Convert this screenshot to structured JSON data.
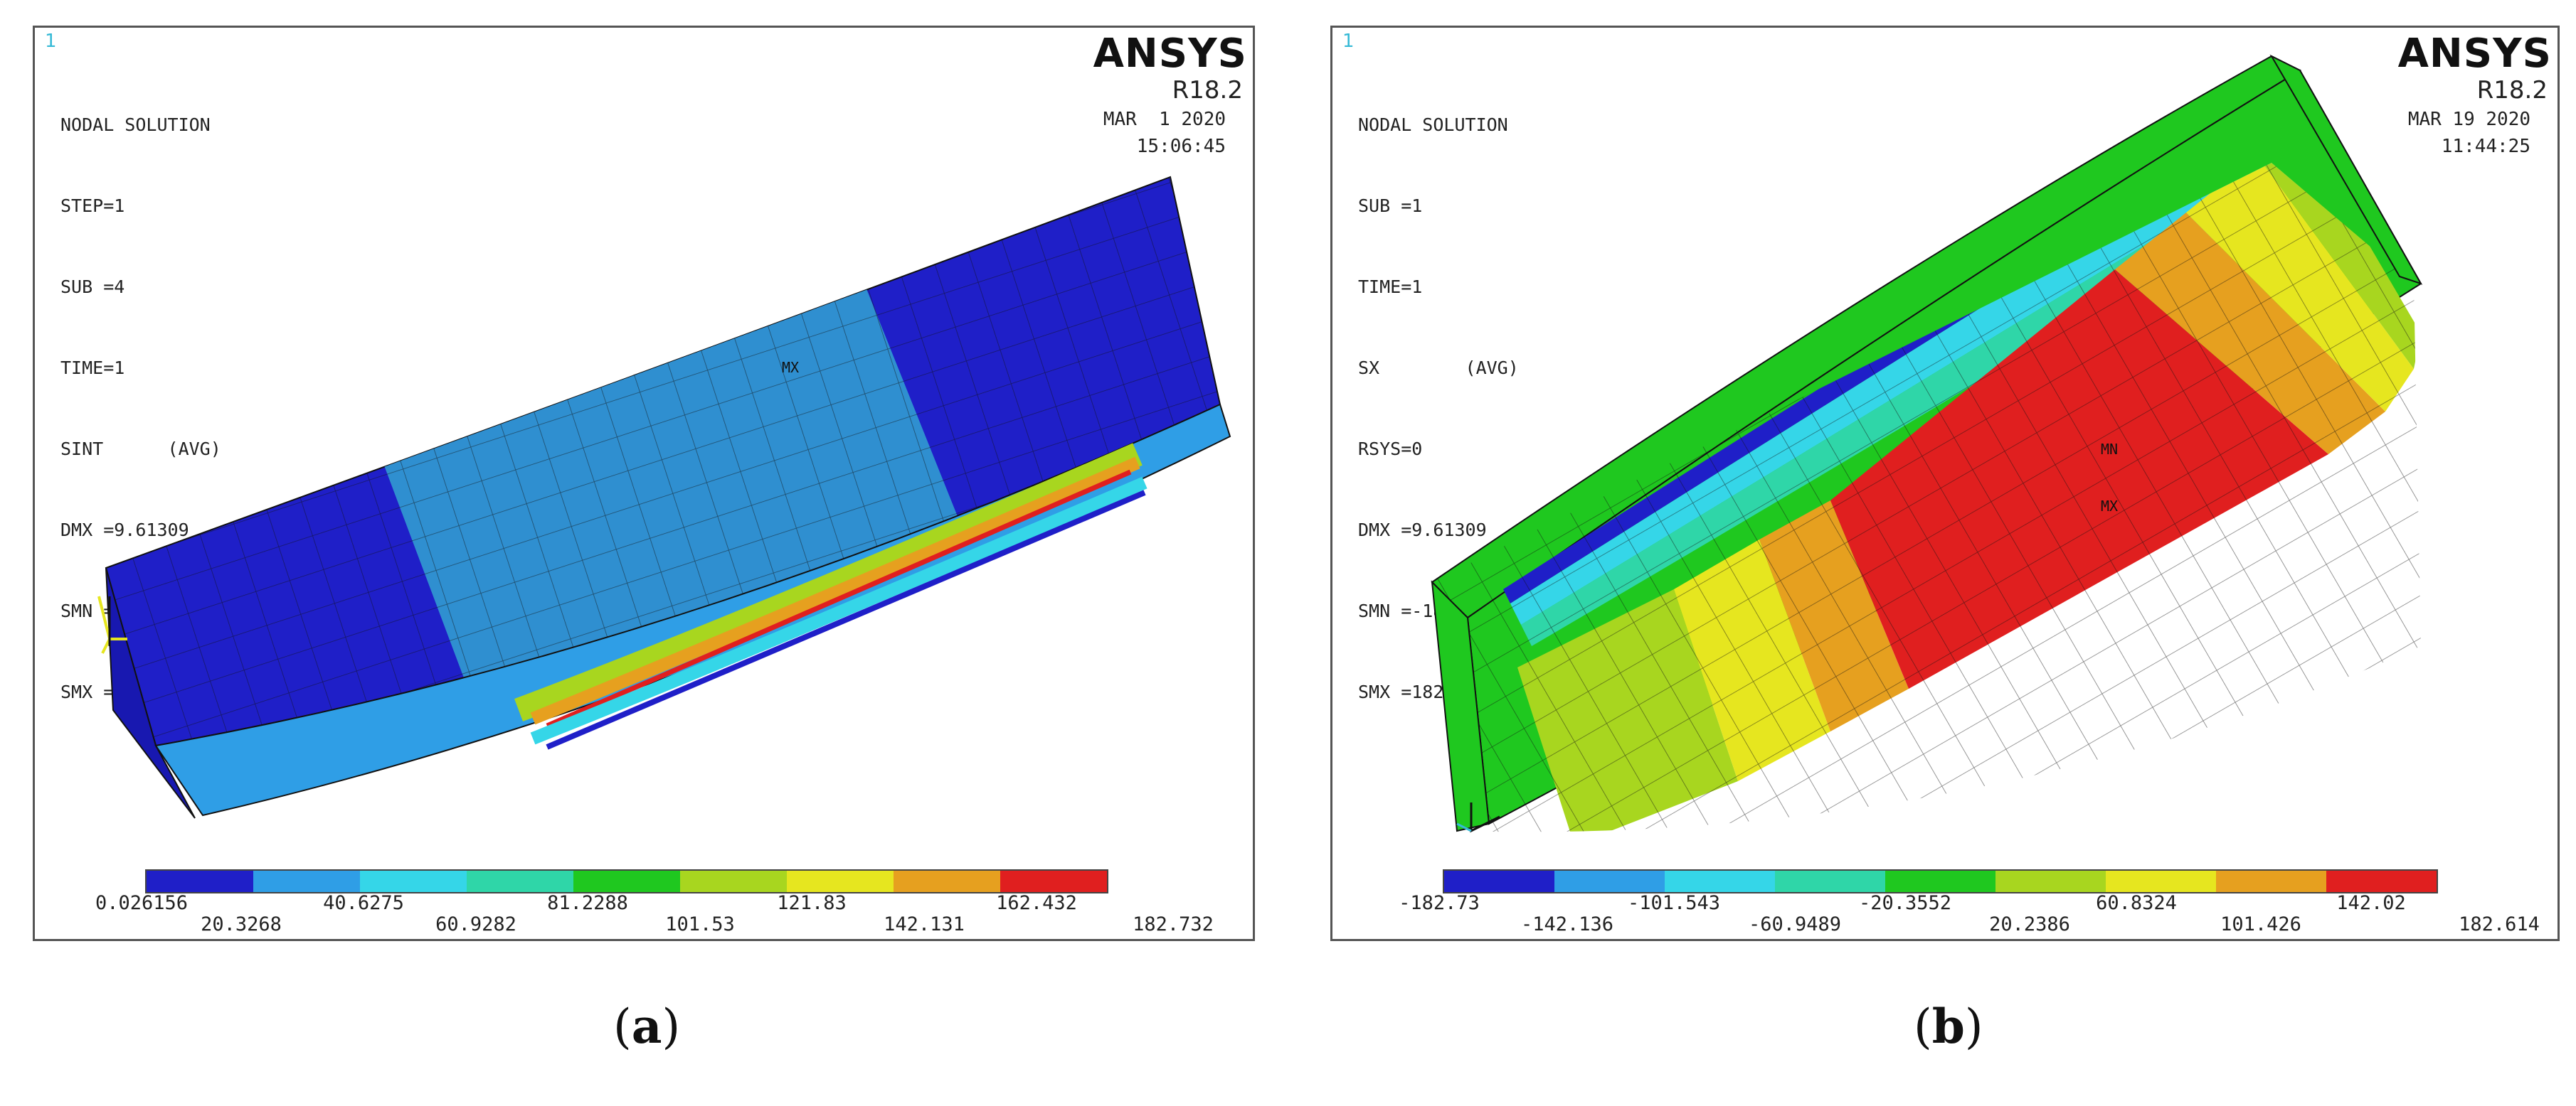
{
  "panels": {
    "a": {
      "corner_number": "1",
      "info_lines": [
        "NODAL SOLUTION",
        "STEP=1",
        "SUB =4",
        "TIME=1",
        "SINT      (AVG)",
        "DMX =9.61309",
        "SMN =0.026156",
        "SMX =182.732"
      ],
      "brand": "ANSYS",
      "release": "R18.2",
      "date": "MAR  1 2020",
      "time": "15:06:45",
      "mx_label": "MX",
      "colorbar_colors": [
        "#1f1fc8",
        "#2f9ee6",
        "#35d6e8",
        "#2fd6a8",
        "#1fc81f",
        "#a8d61f",
        "#e6e61f",
        "#e6a01f",
        "#e01f1f"
      ],
      "labels_top": [
        "0.026156",
        "40.6275",
        "81.2288",
        "121.83",
        "162.432"
      ],
      "labels_bottom": [
        "20.3268",
        "60.9282",
        "101.53",
        "142.131",
        "182.732"
      ],
      "caption": "a"
    },
    "b": {
      "corner_number": "1",
      "info_lines": [
        "NODAL SOLUTION",
        "SUB =1",
        "TIME=1",
        "SX        (AVG)",
        "RSYS=0",
        "DMX =9.61309",
        "SMN =-182.73",
        "SMX =182.614"
      ],
      "brand": "ANSYS",
      "release": "R18.2",
      "date": "MAR 19 2020",
      "time": "11:44:25",
      "mn_label": "MN",
      "mx_label": "MX",
      "colorbar_colors": [
        "#1f1fc8",
        "#2f9ee6",
        "#35d6e8",
        "#2fd6a8",
        "#1fc81f",
        "#a8d61f",
        "#e6e61f",
        "#e6a01f",
        "#e01f1f"
      ],
      "labels_top": [
        "-182.73",
        "-101.543",
        "-20.3552",
        "60.8324",
        "142.02"
      ],
      "labels_bottom": [
        "-142.136",
        "-60.9489",
        "20.2386",
        "101.426",
        "182.614"
      ],
      "caption": "b"
    }
  }
}
